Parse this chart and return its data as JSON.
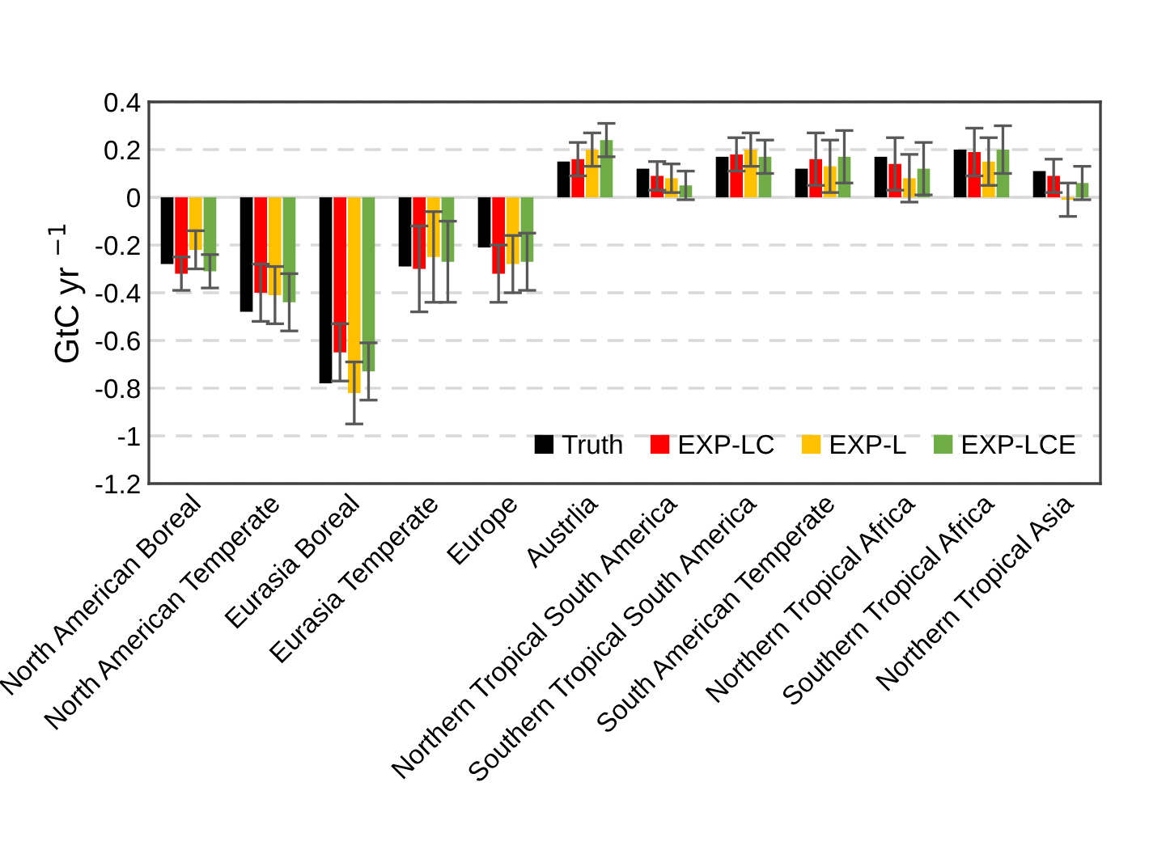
{
  "chart_data": {
    "type": "bar",
    "ylabel": "GtC yr $^{−1}$",
    "categories": [
      "North American Boreal",
      "North American Temperate",
      "Eurasia Boreal",
      "Eurasia Temperate",
      "Europe",
      "Austrlia",
      "Northern Tropical South America",
      "Southern Tropical South America",
      "South American Temperate",
      "Northern Tropical Africa",
      "Southern Tropical Africa",
      "Northern Tropical Asia"
    ],
    "series": [
      {
        "name": "Truth",
        "color": "#000000",
        "values": [
          -0.28,
          -0.48,
          -0.78,
          -0.29,
          -0.21,
          0.15,
          0.12,
          0.17,
          0.12,
          0.17,
          0.2,
          0.11
        ]
      },
      {
        "name": "EXP-LC",
        "color": "#ff0000",
        "values": [
          -0.32,
          -0.4,
          -0.65,
          -0.3,
          -0.32,
          0.16,
          0.09,
          0.18,
          0.16,
          0.14,
          0.19,
          0.09
        ],
        "errors": [
          0.07,
          0.12,
          0.12,
          0.18,
          0.12,
          0.07,
          0.06,
          0.07,
          0.11,
          0.11,
          0.1,
          0.07
        ]
      },
      {
        "name": "EXP-L",
        "color": "#ffc000",
        "values": [
          -0.22,
          -0.41,
          -0.82,
          -0.25,
          -0.28,
          0.2,
          0.08,
          0.2,
          0.13,
          0.08,
          0.15,
          -0.01
        ],
        "errors": [
          0.08,
          0.12,
          0.13,
          0.19,
          0.12,
          0.07,
          0.06,
          0.07,
          0.11,
          0.1,
          0.1,
          0.07
        ]
      },
      {
        "name": "EXP-LCE",
        "color": "#70ad47",
        "values": [
          -0.31,
          -0.44,
          -0.73,
          -0.27,
          -0.27,
          0.24,
          0.05,
          0.17,
          0.17,
          0.12,
          0.2,
          0.06
        ],
        "errors": [
          0.07,
          0.12,
          0.12,
          0.17,
          0.12,
          0.07,
          0.06,
          0.07,
          0.11,
          0.11,
          0.1,
          0.07
        ]
      }
    ],
    "ylim": [
      -1.2,
      0.4
    ],
    "yticks": [
      0.4,
      0.2,
      0,
      -0.2,
      -0.4,
      -0.6,
      -0.8,
      -1,
      -1.2
    ],
    "ref_lines": [
      {
        "axis": "y",
        "value": 0,
        "color": "#d9d9d9"
      }
    ],
    "grid": "y",
    "legend": "bottom right"
  }
}
